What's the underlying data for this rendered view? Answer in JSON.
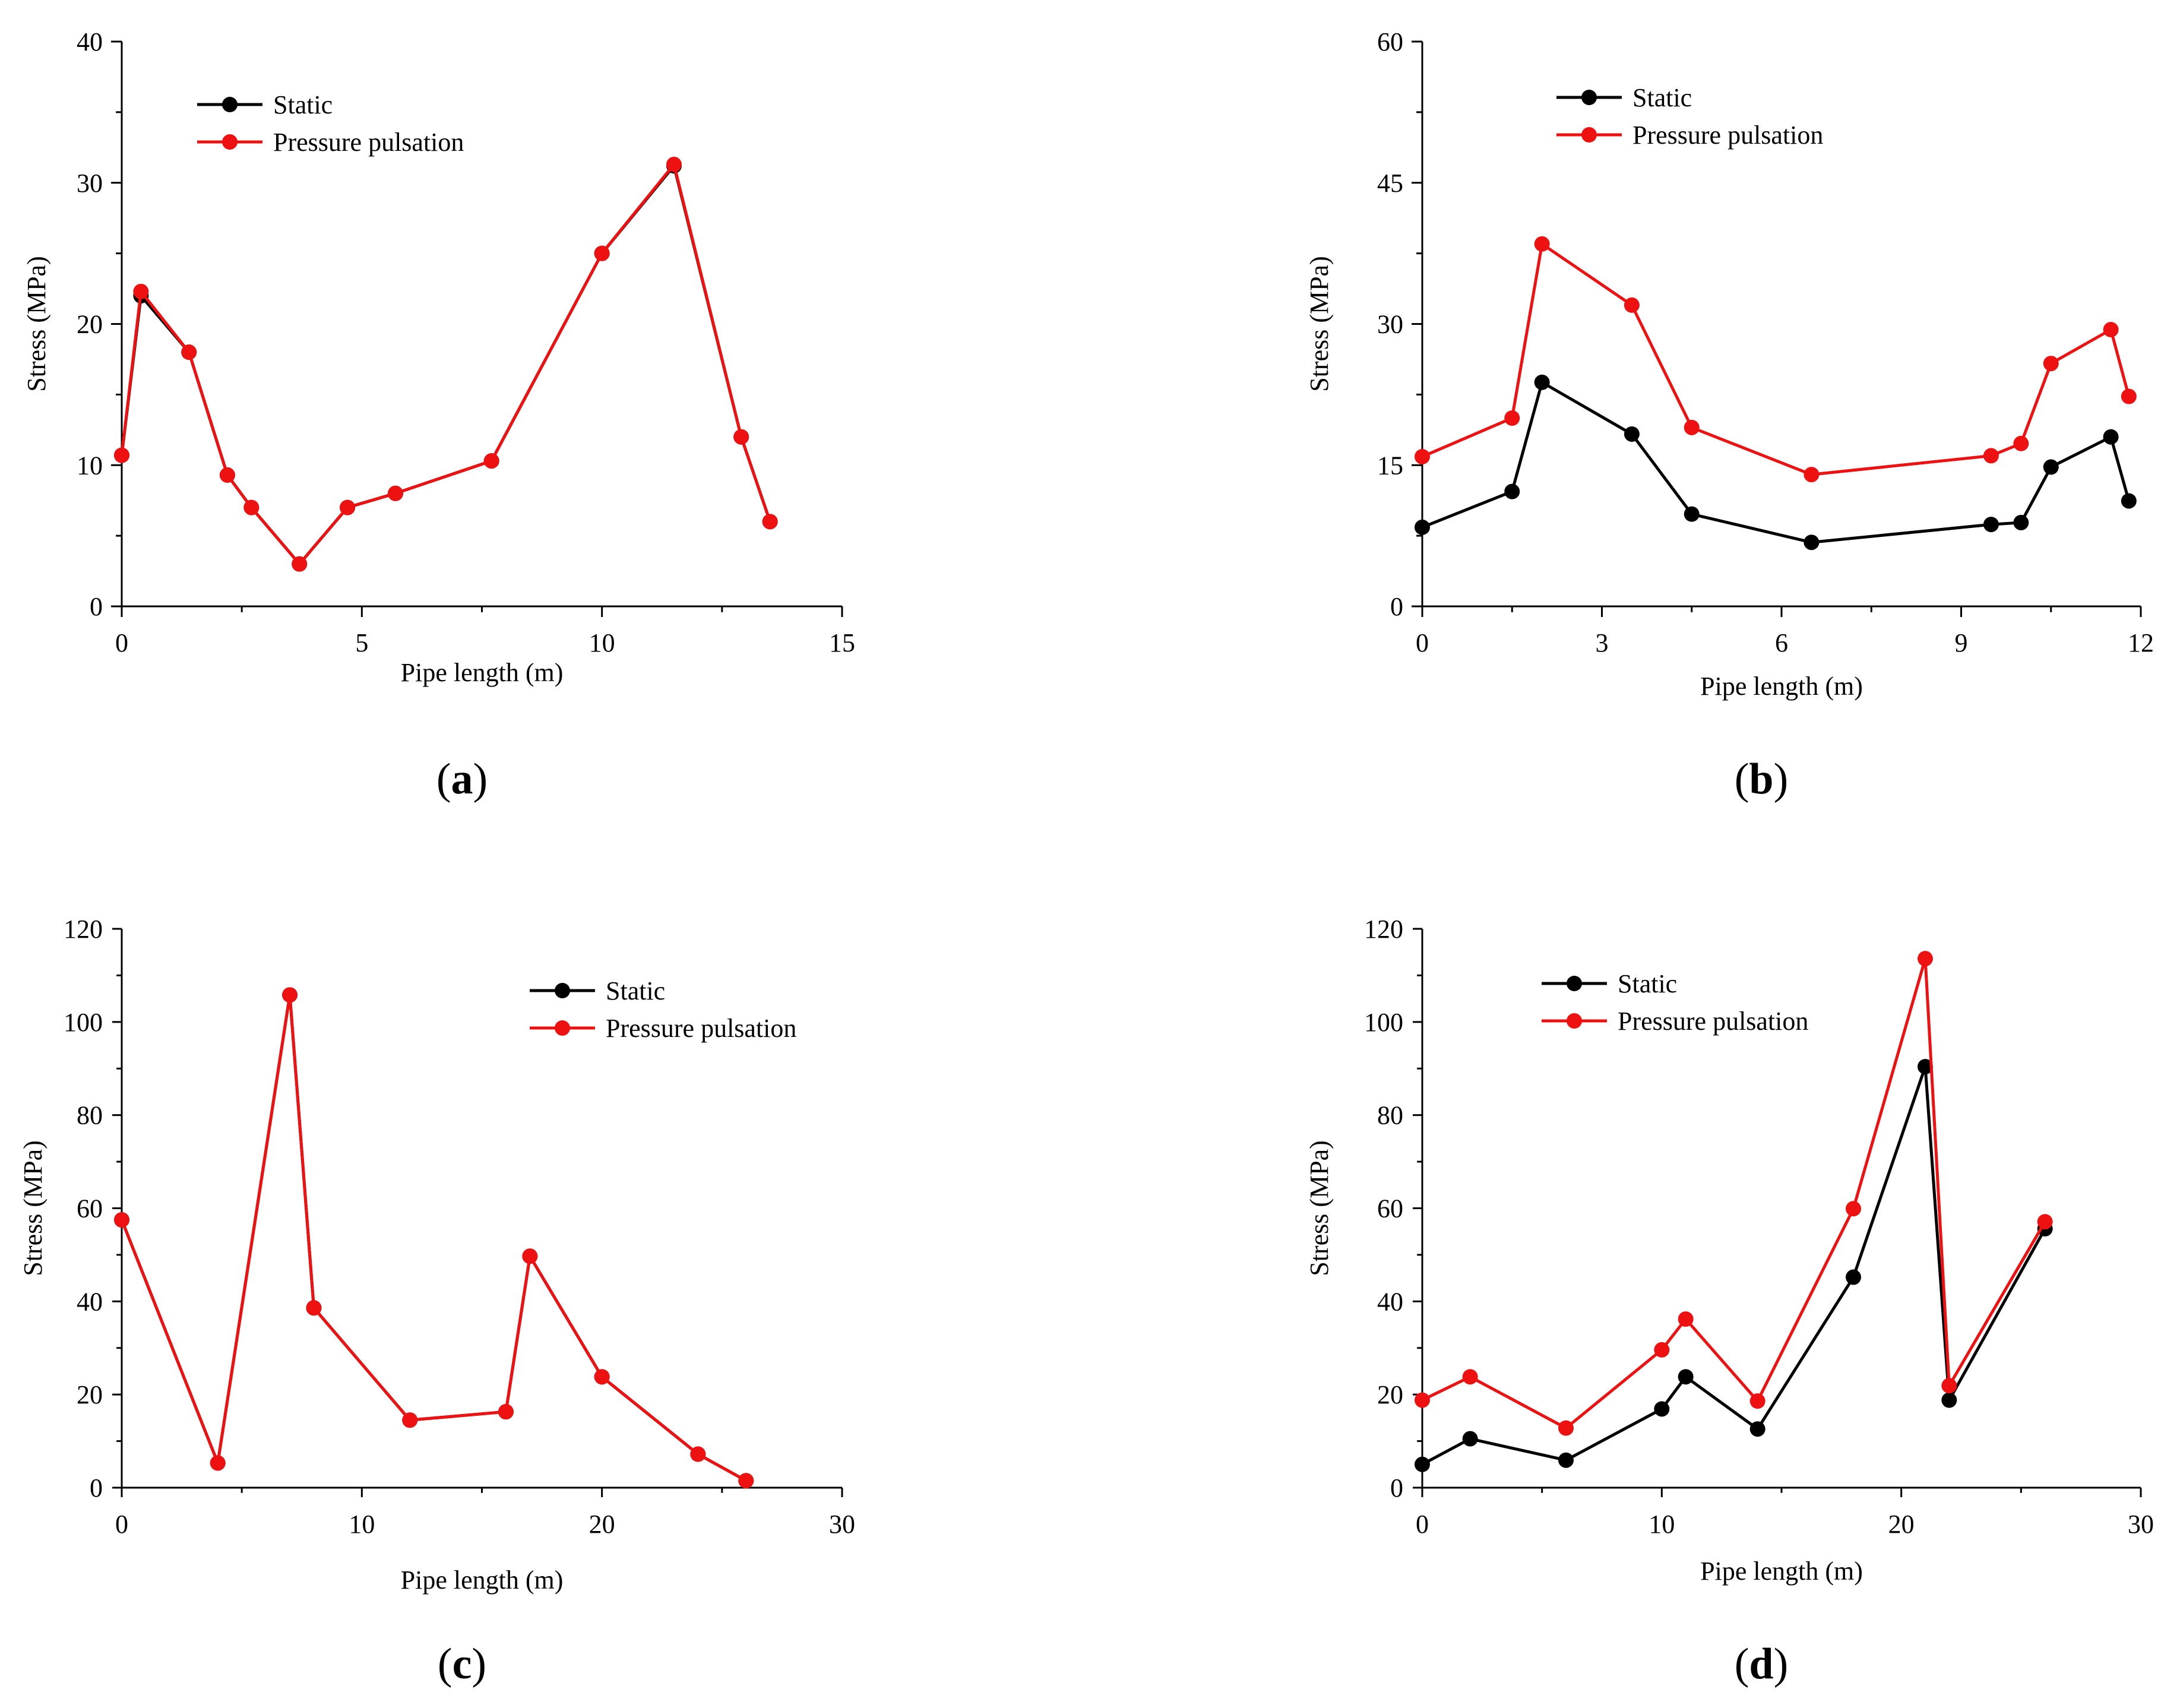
{
  "chart_data": [
    {
      "type": "line",
      "panel_label": "(a)",
      "xlabel": "Pipe length (m)",
      "ylabel": "Stress (MPa)",
      "xlim": [
        0,
        15
      ],
      "ylim": [
        0,
        40
      ],
      "xticks": [
        0,
        5,
        10,
        15
      ],
      "yticks": [
        0,
        10,
        20,
        30,
        40
      ],
      "legend_position": "top-left",
      "series": [
        {
          "name": "Static",
          "color": "#000000",
          "x": [
            0,
            0.4,
            1.4,
            2.2,
            2.7,
            3.7,
            4.7,
            5.7,
            7.7,
            10,
            11.5,
            12.9,
            13.5
          ],
          "y": [
            10.7,
            22,
            18,
            9.3,
            7,
            3,
            7,
            8,
            10.3,
            25,
            31.2,
            12,
            6
          ]
        },
        {
          "name": "Pressure pulsation",
          "color": "#ee1111",
          "x": [
            0,
            0.4,
            1.4,
            2.2,
            2.7,
            3.7,
            4.7,
            5.7,
            7.7,
            10,
            11.5,
            12.9,
            13.5
          ],
          "y": [
            10.7,
            22.3,
            18,
            9.3,
            7,
            3,
            7,
            8,
            10.3,
            25,
            31.3,
            12,
            6
          ]
        }
      ]
    },
    {
      "type": "line",
      "panel_label": "(b)",
      "xlabel": "Pipe length (m)",
      "ylabel": "Stress (MPa)",
      "xlim": [
        0,
        12
      ],
      "ylim": [
        0,
        60
      ],
      "xticks": [
        0,
        3,
        6,
        9,
        12
      ],
      "yticks": [
        0,
        15,
        30,
        45,
        60
      ],
      "legend_position": "top-left",
      "series": [
        {
          "name": "Static",
          "color": "#000000",
          "x": [
            0,
            1.5,
            2,
            3.5,
            4.5,
            6.5,
            9.5,
            10,
            10.5,
            11.5,
            11.8
          ],
          "y": [
            8.4,
            12.2,
            23.8,
            18.3,
            9.8,
            6.8,
            8.7,
            8.9,
            14.8,
            18,
            11.2
          ]
        },
        {
          "name": "Pressure pulsation",
          "color": "#ee1111",
          "x": [
            0,
            1.5,
            2,
            3.5,
            4.5,
            6.5,
            9.5,
            10,
            10.5,
            11.5,
            11.8
          ],
          "y": [
            15.9,
            20,
            38.5,
            32,
            19,
            14,
            16,
            17.3,
            25.8,
            29.4,
            22.3
          ]
        }
      ]
    },
    {
      "type": "line",
      "panel_label": "(c)",
      "xlabel": "Pipe length (m)",
      "ylabel": "Stress (MPa)",
      "xlim": [
        0,
        30
      ],
      "ylim": [
        0,
        120
      ],
      "xticks": [
        0,
        10,
        20,
        30
      ],
      "yticks": [
        0,
        20,
        40,
        60,
        80,
        100,
        120
      ],
      "legend_position": "top-right",
      "series": [
        {
          "name": "Static",
          "color": "#000000",
          "x": [
            0,
            4,
            7,
            8,
            12,
            16,
            17,
            20,
            24,
            26
          ],
          "y": [
            57.5,
            5.3,
            105.8,
            38.6,
            14.5,
            16.3,
            49.7,
            23.8,
            7.2,
            1.5
          ]
        },
        {
          "name": "Pressure pulsation",
          "color": "#ee1111",
          "x": [
            0,
            4,
            7,
            8,
            12,
            16,
            17,
            20,
            24,
            26
          ],
          "y": [
            57.5,
            5.3,
            105.8,
            38.6,
            14.5,
            16.3,
            49.7,
            23.8,
            7.2,
            1.5
          ]
        }
      ]
    },
    {
      "type": "line",
      "panel_label": "(d)",
      "xlabel": "Pipe length (m)",
      "ylabel": "Stress (MPa)",
      "xlim": [
        0,
        30
      ],
      "ylim": [
        0,
        120
      ],
      "xticks": [
        0,
        10,
        20,
        30
      ],
      "yticks": [
        0,
        20,
        40,
        60,
        80,
        100,
        120
      ],
      "legend_position": "top-left",
      "series": [
        {
          "name": "Static",
          "color": "#000000",
          "x": [
            0,
            2,
            6,
            10,
            11,
            14,
            18,
            21,
            22,
            26
          ],
          "y": [
            5,
            10.5,
            5.9,
            16.9,
            23.8,
            12.6,
            45.2,
            90.4,
            18.8,
            55.6
          ]
        },
        {
          "name": "Pressure pulsation",
          "color": "#ee1111",
          "x": [
            0,
            2,
            6,
            10,
            11,
            14,
            18,
            21,
            22,
            26
          ],
          "y": [
            18.8,
            23.8,
            12.8,
            29.6,
            36.2,
            18.6,
            59.9,
            113.6,
            21.9,
            57.1
          ]
        }
      ]
    }
  ]
}
